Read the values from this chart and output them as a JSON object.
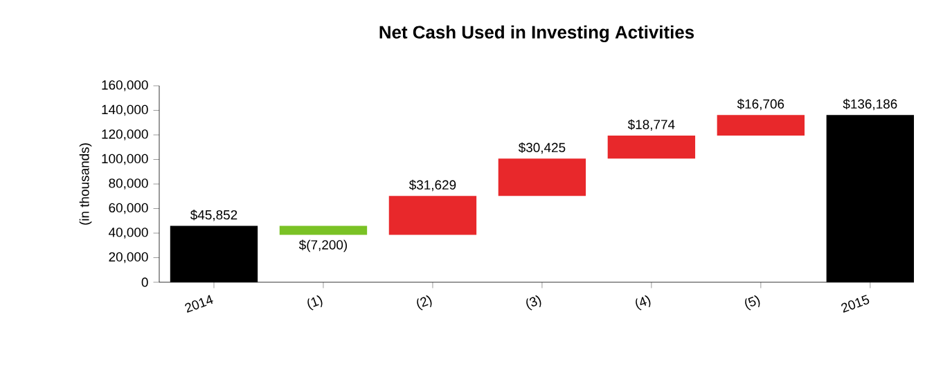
{
  "chart_data": {
    "type": "bar",
    "title": "Net Cash Used in Investing Activities",
    "ylabel": "(in thousands)",
    "categories": [
      "2014",
      "(1)",
      "(2)",
      "(3)",
      "(4)",
      "(5)",
      "2015"
    ],
    "values": [
      45852,
      -7200,
      31629,
      30425,
      18774,
      16706,
      136186
    ],
    "base": [
      0,
      45852,
      38652,
      70281,
      100706,
      119480,
      0
    ],
    "colors": [
      "#000000",
      "#7ac225",
      "#e8282b",
      "#e8282b",
      "#e8282b",
      "#e8282b",
      "#000000"
    ],
    "value_labels": [
      "$45,852",
      "$(7,200)",
      "$31,629",
      "$30,425",
      "$18,774",
      "$16,706",
      "$136,186"
    ],
    "ylim": [
      0,
      160000
    ],
    "yticks": [
      {
        "value": 0,
        "label": "0"
      },
      {
        "value": 20000,
        "label": "20,000"
      },
      {
        "value": 40000,
        "label": "40,000"
      },
      {
        "value": 60000,
        "label": "60,000"
      },
      {
        "value": 80000,
        "label": "80,000"
      },
      {
        "value": 100000,
        "label": "100,000"
      },
      {
        "value": 120000,
        "label": "120,000"
      },
      {
        "value": 140000,
        "label": "140,000"
      },
      {
        "value": 160000,
        "label": "160,000"
      }
    ]
  }
}
